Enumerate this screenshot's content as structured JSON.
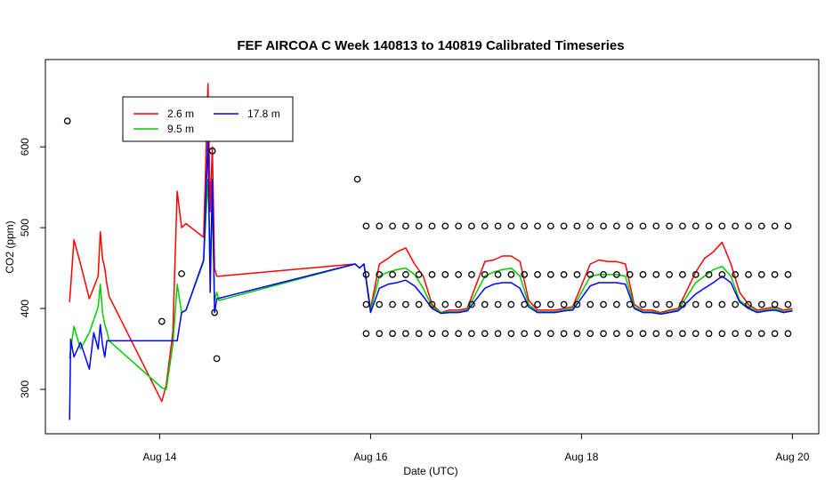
{
  "chart_data": {
    "type": "line",
    "title": "FEF AIRCOA C  Week 140813 to 140819  Calibrated Timeseries",
    "xlabel": "Date (UTC)",
    "ylabel": "CO2 (ppm)",
    "xlim": [
      "2014-08-12T22:00Z",
      "2014-08-20T06:00Z"
    ],
    "ylim": [
      245,
      708
    ],
    "grid": false,
    "legend_position": "top-left",
    "x_ticks": [
      {
        "x": "2014-08-14T00:00Z",
        "label": "Aug 14"
      },
      {
        "x": "2014-08-16T00:00Z",
        "label": "Aug 16"
      },
      {
        "x": "2014-08-18T00:00Z",
        "label": "Aug 18"
      },
      {
        "x": "2014-08-20T00:00Z",
        "label": "Aug 20"
      }
    ],
    "y_ticks": [
      300,
      400,
      500,
      600
    ],
    "colors": {
      "2.6 m": "#ff0000",
      "9.5 m": "#00cc00",
      "17.8 m": "#0000ff",
      "calibration": "#000000"
    },
    "series": [
      {
        "name": "2.6 m",
        "color": "#ff0000",
        "x": [
          "2014-08-13T03:30Z",
          "2014-08-13T04:30Z",
          "2014-08-13T06:00Z",
          "2014-08-13T08:00Z",
          "2014-08-13T10:00Z",
          "2014-08-13T10:30Z",
          "2014-08-13T11:00Z",
          "2014-08-13T11:30Z",
          "2014-08-13T12:00Z",
          "2014-08-13T12:30Z",
          "2014-08-14T00:30Z",
          "2014-08-14T01:30Z",
          "2014-08-14T03:00Z",
          "2014-08-14T04:00Z",
          "2014-08-14T05:00Z",
          "2014-08-14T06:00Z",
          "2014-08-14T10:00Z",
          "2014-08-14T11:00Z",
          "2014-08-14T11:30Z",
          "2014-08-14T12:00Z",
          "2014-08-14T12:30Z",
          "2014-08-14T13:00Z",
          "2014-08-14T13:30Z",
          "2014-08-15T20:30Z",
          "2014-08-15T21:30Z",
          "2014-08-15T22:30Z",
          "2014-08-16T00:00Z",
          "2014-08-16T02:00Z",
          "2014-08-16T04:00Z",
          "2014-08-16T06:00Z",
          "2014-08-16T08:00Z",
          "2014-08-16T10:00Z",
          "2014-08-16T12:00Z",
          "2014-08-16T14:00Z",
          "2014-08-16T16:00Z",
          "2014-08-16T18:00Z",
          "2014-08-16T20:00Z",
          "2014-08-16T22:00Z",
          "2014-08-17T02:00Z",
          "2014-08-17T04:00Z",
          "2014-08-17T06:00Z",
          "2014-08-17T08:00Z",
          "2014-08-17T10:00Z",
          "2014-08-17T12:00Z",
          "2014-08-17T14:00Z",
          "2014-08-17T16:00Z",
          "2014-08-17T18:00Z",
          "2014-08-17T20:00Z",
          "2014-08-17T22:00Z",
          "2014-08-18T02:00Z",
          "2014-08-18T04:00Z",
          "2014-08-18T06:00Z",
          "2014-08-18T08:00Z",
          "2014-08-18T10:00Z",
          "2014-08-18T12:00Z",
          "2014-08-18T14:00Z",
          "2014-08-18T16:00Z",
          "2014-08-18T18:00Z",
          "2014-08-18T20:00Z",
          "2014-08-18T22:00Z",
          "2014-08-19T02:00Z",
          "2014-08-19T04:00Z",
          "2014-08-19T06:00Z",
          "2014-08-19T08:00Z",
          "2014-08-19T10:00Z",
          "2014-08-19T12:00Z",
          "2014-08-19T14:00Z",
          "2014-08-19T16:00Z",
          "2014-08-19T18:00Z",
          "2014-08-19T20:00Z",
          "2014-08-19T22:00Z",
          "2014-08-20T00:00Z"
        ],
        "y": [
          408,
          485,
          455,
          412,
          440,
          495,
          462,
          450,
          430,
          415,
          285,
          305,
          370,
          545,
          500,
          505,
          488,
          678,
          520,
          600,
          450,
          440,
          440,
          455,
          450,
          455,
          400,
          455,
          462,
          470,
          475,
          455,
          440,
          405,
          395,
          398,
          398,
          400,
          458,
          460,
          465,
          465,
          458,
          410,
          398,
          398,
          398,
          400,
          402,
          455,
          460,
          458,
          458,
          455,
          405,
          398,
          398,
          395,
          398,
          400,
          445,
          462,
          470,
          482,
          455,
          420,
          405,
          398,
          400,
          402,
          398,
          400
        ]
      },
      {
        "name": "9.5 m",
        "color": "#00cc00",
        "x": [
          "2014-08-13T03:30Z",
          "2014-08-13T04:30Z",
          "2014-08-13T06:00Z",
          "2014-08-13T08:00Z",
          "2014-08-13T10:00Z",
          "2014-08-13T10:30Z",
          "2014-08-13T11:00Z",
          "2014-08-13T11:30Z",
          "2014-08-13T12:00Z",
          "2014-08-13T12:30Z",
          "2014-08-14T00:30Z",
          "2014-08-14T01:30Z",
          "2014-08-14T03:00Z",
          "2014-08-14T04:00Z",
          "2014-08-14T05:00Z",
          "2014-08-14T06:00Z",
          "2014-08-14T10:00Z",
          "2014-08-14T11:00Z",
          "2014-08-14T11:30Z",
          "2014-08-14T12:00Z",
          "2014-08-14T12:30Z",
          "2014-08-14T13:00Z",
          "2014-08-14T13:30Z",
          "2014-08-15T20:30Z",
          "2014-08-15T21:30Z",
          "2014-08-15T22:30Z",
          "2014-08-16T00:00Z",
          "2014-08-16T02:00Z",
          "2014-08-16T04:00Z",
          "2014-08-16T06:00Z",
          "2014-08-16T08:00Z",
          "2014-08-16T10:00Z",
          "2014-08-16T12:00Z",
          "2014-08-16T14:00Z",
          "2014-08-16T16:00Z",
          "2014-08-16T18:00Z",
          "2014-08-16T20:00Z",
          "2014-08-16T22:00Z",
          "2014-08-17T02:00Z",
          "2014-08-17T04:00Z",
          "2014-08-17T06:00Z",
          "2014-08-17T08:00Z",
          "2014-08-17T10:00Z",
          "2014-08-17T12:00Z",
          "2014-08-17T14:00Z",
          "2014-08-17T16:00Z",
          "2014-08-17T18:00Z",
          "2014-08-17T20:00Z",
          "2014-08-17T22:00Z",
          "2014-08-18T02:00Z",
          "2014-08-18T04:00Z",
          "2014-08-18T06:00Z",
          "2014-08-18T08:00Z",
          "2014-08-18T10:00Z",
          "2014-08-18T12:00Z",
          "2014-08-18T14:00Z",
          "2014-08-18T16:00Z",
          "2014-08-18T18:00Z",
          "2014-08-18T20:00Z",
          "2014-08-18T22:00Z",
          "2014-08-19T02:00Z",
          "2014-08-19T04:00Z",
          "2014-08-19T06:00Z",
          "2014-08-19T08:00Z",
          "2014-08-19T10:00Z",
          "2014-08-19T12:00Z",
          "2014-08-19T14:00Z",
          "2014-08-19T16:00Z",
          "2014-08-19T18:00Z",
          "2014-08-19T20:00Z",
          "2014-08-19T22:00Z",
          "2014-08-20T00:00Z"
        ],
        "y": [
          338,
          378,
          350,
          370,
          402,
          430,
          395,
          380,
          372,
          360,
          302,
          300,
          355,
          430,
          395,
          398,
          458,
          560,
          460,
          530,
          410,
          420,
          410,
          455,
          450,
          455,
          398,
          440,
          445,
          448,
          450,
          442,
          425,
          402,
          395,
          396,
          396,
          398,
          440,
          445,
          448,
          450,
          440,
          405,
          396,
          396,
          396,
          398,
          400,
          440,
          442,
          442,
          442,
          440,
          402,
          396,
          396,
          394,
          396,
          398,
          432,
          440,
          448,
          452,
          440,
          410,
          402,
          396,
          398,
          400,
          396,
          398
        ]
      },
      {
        "name": "17.8 m",
        "color": "#0000ff",
        "x": [
          "2014-08-13T03:30Z",
          "2014-08-13T03:45Z",
          "2014-08-13T04:30Z",
          "2014-08-13T06:00Z",
          "2014-08-13T08:00Z",
          "2014-08-13T09:00Z",
          "2014-08-13T10:00Z",
          "2014-08-13T10:30Z",
          "2014-08-13T11:00Z",
          "2014-08-13T11:30Z",
          "2014-08-13T12:00Z",
          "2014-08-14T04:00Z",
          "2014-08-14T05:00Z",
          "2014-08-14T06:00Z",
          "2014-08-14T10:00Z",
          "2014-08-14T11:00Z",
          "2014-08-14T11:30Z",
          "2014-08-14T12:00Z",
          "2014-08-14T12:30Z",
          "2014-08-14T13:00Z",
          "2014-08-15T20:30Z",
          "2014-08-15T21:30Z",
          "2014-08-15T22:30Z",
          "2014-08-16T00:00Z",
          "2014-08-16T02:00Z",
          "2014-08-16T04:00Z",
          "2014-08-16T06:00Z",
          "2014-08-16T08:00Z",
          "2014-08-16T10:00Z",
          "2014-08-16T12:00Z",
          "2014-08-16T14:00Z",
          "2014-08-16T16:00Z",
          "2014-08-16T18:00Z",
          "2014-08-16T20:00Z",
          "2014-08-16T22:00Z",
          "2014-08-17T02:00Z",
          "2014-08-17T04:00Z",
          "2014-08-17T06:00Z",
          "2014-08-17T08:00Z",
          "2014-08-17T10:00Z",
          "2014-08-17T12:00Z",
          "2014-08-17T14:00Z",
          "2014-08-17T16:00Z",
          "2014-08-17T18:00Z",
          "2014-08-17T20:00Z",
          "2014-08-17T22:00Z",
          "2014-08-18T02:00Z",
          "2014-08-18T04:00Z",
          "2014-08-18T06:00Z",
          "2014-08-18T08:00Z",
          "2014-08-18T10:00Z",
          "2014-08-18T12:00Z",
          "2014-08-18T14:00Z",
          "2014-08-18T16:00Z",
          "2014-08-18T18:00Z",
          "2014-08-18T20:00Z",
          "2014-08-18T22:00Z",
          "2014-08-19T02:00Z",
          "2014-08-19T04:00Z",
          "2014-08-19T06:00Z",
          "2014-08-19T08:00Z",
          "2014-08-19T10:00Z",
          "2014-08-19T12:00Z",
          "2014-08-19T14:00Z",
          "2014-08-19T16:00Z",
          "2014-08-19T18:00Z",
          "2014-08-19T20:00Z",
          "2014-08-19T22:00Z",
          "2014-08-20T00:00Z"
        ],
        "y": [
          262,
          362,
          340,
          358,
          325,
          370,
          350,
          380,
          355,
          340,
          360,
          360,
          395,
          398,
          460,
          610,
          420,
          560,
          395,
          412,
          455,
          450,
          455,
          395,
          425,
          430,
          432,
          435,
          428,
          415,
          400,
          394,
          395,
          395,
          397,
          425,
          430,
          432,
          432,
          425,
          402,
          395,
          395,
          395,
          397,
          398,
          428,
          432,
          432,
          432,
          430,
          400,
          395,
          395,
          393,
          395,
          397,
          418,
          425,
          432,
          440,
          432,
          408,
          400,
          395,
          397,
          398,
          395,
          397
        ]
      },
      {
        "name": "calibration",
        "type": "scatter",
        "color": "#000000",
        "x": [
          "2014-08-13T03:00Z",
          "2014-08-14T00:30Z",
          "2014-08-14T05:00Z",
          "2014-08-14T12:00Z",
          "2014-08-14T12:30Z",
          "2014-08-14T13:00Z",
          "2014-08-15T21:00Z"
        ],
        "y": [
          632,
          384,
          443,
          595,
          395,
          338,
          560
        ]
      }
    ],
    "calibration_levels": [
      502,
      442,
      405,
      369
    ],
    "calibration_window": [
      "2014-08-15T23:00Z",
      "2014-08-20T00:00Z"
    ],
    "legend": [
      {
        "label": "2.6 m",
        "color": "#ff0000"
      },
      {
        "label": "9.5 m",
        "color": "#00cc00"
      },
      {
        "label": "17.8 m",
        "color": "#0000ff"
      }
    ]
  }
}
